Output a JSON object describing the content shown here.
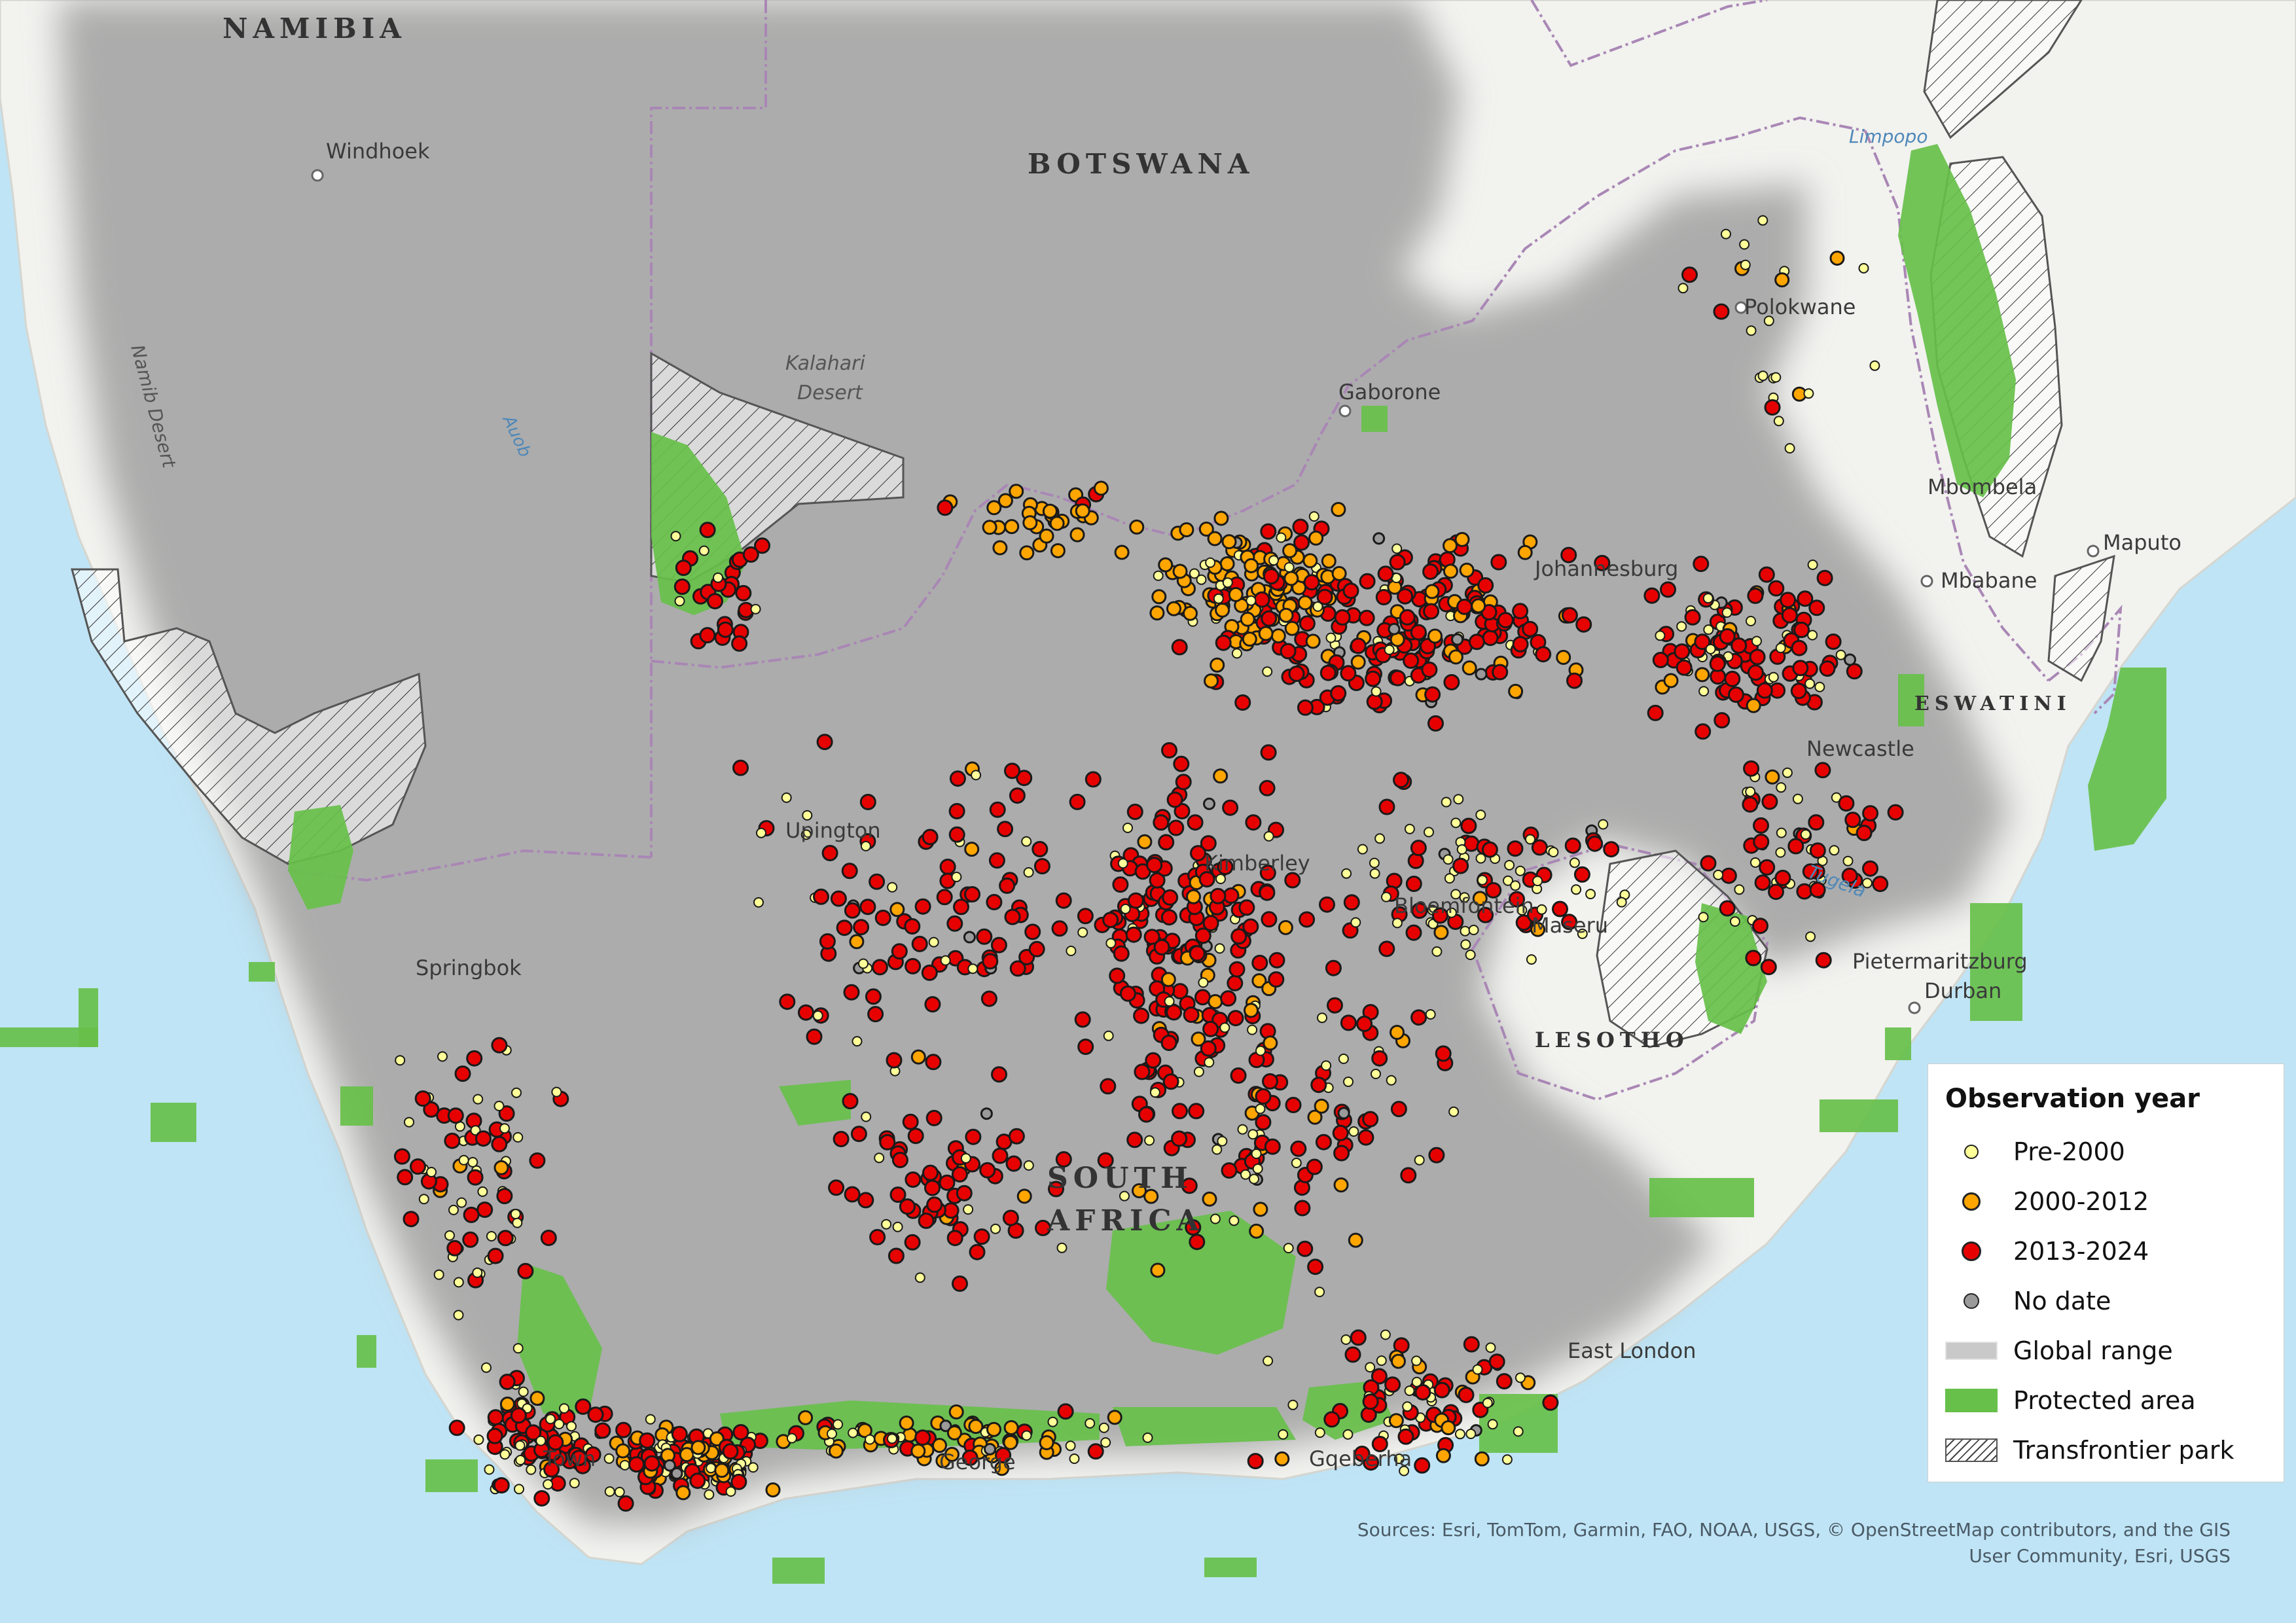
{
  "map": {
    "countries": [
      "NAMIBIA",
      "BOTSWANA",
      "SOUTH AFRICA",
      "LESOTHO",
      "ESWATINI"
    ],
    "cities": [
      "Windhoek",
      "Gaborone",
      "Polokwane",
      "Johannesburg",
      "Mbombela",
      "Maputo",
      "Mbabane",
      "Newcastle",
      "Upington",
      "Kimberley",
      "Bloemfontein",
      "Maseru",
      "Springbok",
      "Pietermaritzburg",
      "Durban",
      "East London",
      "George",
      "Cape Town",
      "Gqeberha"
    ],
    "city_labels": {
      "windhoek": "Windhoek",
      "gaborone": "Gaborone",
      "polokwane": "Polokwane",
      "johannesburg": "Johannesburg",
      "mbombela": "Mbombela",
      "maputo": "Maputo",
      "mbabane": "Mbabane",
      "newcastle": "Newcastle",
      "upington": "Upington",
      "kimberley": "Kimberley",
      "bloemfontein": "Bloemfontein",
      "maseru": "Maseru",
      "springbok": "Springbok",
      "pietermaritzburg": "Pietermaritzburg",
      "durban": "Durban",
      "east_london": "East London",
      "george": "George",
      "cape_town": "Town",
      "gqeberha": "Gqeberha"
    },
    "country_labels": {
      "namibia": "NAMIBIA",
      "botswana": "BOTSWANA",
      "south": "SOUTH",
      "africa": "AFRICA",
      "lesotho": "LESOTHO",
      "eswatini": "ESWATINI"
    },
    "physical_labels": {
      "kalahari_1": "Kalahari",
      "kalahari_2": "Desert",
      "namib": "Namib Desert",
      "auob": "Auob",
      "limpopo": "Limpopo",
      "tugela": "Tugela"
    },
    "colors": {
      "ocean": "#bfe4f5",
      "land": "#f2f2ef",
      "range": "#a6a6a6",
      "protected": "#67c04a",
      "pre2000": "#ffff99",
      "y2000_2012": "#ffa500",
      "y2013_2024": "#e60000",
      "nodate": "#9a9a9a",
      "border": "#a987b5"
    }
  },
  "legend": {
    "title": "Observation year",
    "items": [
      {
        "label": "Pre-2000",
        "symbol": "dot",
        "color": "#ffff99"
      },
      {
        "label": "2000-2012",
        "symbol": "dot",
        "color": "#ffa500"
      },
      {
        "label": "2013-2024",
        "symbol": "dot",
        "color": "#e60000"
      },
      {
        "label": "No date",
        "symbol": "dot",
        "color": "#9a9a9a"
      },
      {
        "label": "Global range",
        "symbol": "range"
      },
      {
        "label": "Protected area",
        "symbol": "protected"
      },
      {
        "label": "Transfrontier park",
        "symbol": "hatch"
      }
    ]
  },
  "attribution": "Sources: Esri, TomTom, Garmin, FAO, NOAA, USGS, © OpenStreetMap contributors, and the GIS User Community, Esri, USGS"
}
